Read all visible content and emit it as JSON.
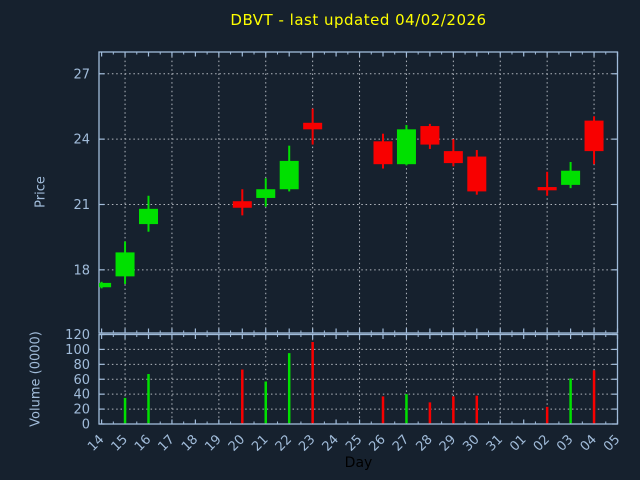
{
  "title": "DBVT - last updated 04/02/2026",
  "colors": {
    "background": "#16212e",
    "axis": "#a1bcda",
    "grid": "#c3c8cf",
    "title": "#ffff00",
    "up": "#00e000",
    "down": "#f80000",
    "xlabel_color": "#000000"
  },
  "chart_data": [
    {
      "type": "candlestick",
      "title": "DBVT - last updated 04/02/2026",
      "xlabel": "Day",
      "ylabel": "Price",
      "ylim": [
        15.1,
        28.0
      ],
      "yticks": [
        18,
        21,
        24,
        27
      ],
      "grid": true,
      "legend": "none",
      "categories": [
        "14",
        "15",
        "16",
        "17",
        "18",
        "19",
        "20",
        "21",
        "22",
        "23",
        "24",
        "25",
        "26",
        "27",
        "28",
        "29",
        "30",
        "31",
        "01",
        "02",
        "03",
        "04",
        "05"
      ],
      "candles": [
        {
          "day": "14",
          "open": 17.2,
          "high": 17.45,
          "low": 17.15,
          "close": 17.4
        },
        {
          "day": "15",
          "open": 17.7,
          "high": 19.3,
          "low": 17.35,
          "close": 18.8
        },
        {
          "day": "16",
          "open": 20.1,
          "high": 21.4,
          "low": 19.75,
          "close": 20.8
        },
        {
          "day": "20",
          "open": 21.15,
          "high": 21.7,
          "low": 20.5,
          "close": 20.85
        },
        {
          "day": "21",
          "open": 21.3,
          "high": 22.2,
          "low": 20.9,
          "close": 21.7
        },
        {
          "day": "22",
          "open": 21.7,
          "high": 23.7,
          "low": 21.6,
          "close": 23.0
        },
        {
          "day": "23",
          "open": 24.75,
          "high": 25.4,
          "low": 23.75,
          "close": 24.45
        },
        {
          "day": "26",
          "open": 23.9,
          "high": 24.25,
          "low": 22.65,
          "close": 22.85
        },
        {
          "day": "27",
          "open": 22.85,
          "high": 24.65,
          "low": 22.8,
          "close": 24.45
        },
        {
          "day": "28",
          "open": 24.6,
          "high": 24.7,
          "low": 23.55,
          "close": 23.75
        },
        {
          "day": "29",
          "open": 23.45,
          "high": 24.0,
          "low": 22.75,
          "close": 22.9
        },
        {
          "day": "30",
          "open": 23.2,
          "high": 23.5,
          "low": 21.45,
          "close": 21.6
        },
        {
          "day": "02",
          "open": 21.8,
          "high": 22.5,
          "low": 21.4,
          "close": 21.65
        },
        {
          "day": "03",
          "open": 21.9,
          "high": 22.95,
          "low": 21.75,
          "close": 22.55
        },
        {
          "day": "04",
          "open": 24.85,
          "high": 25.05,
          "low": 22.85,
          "close": 23.45
        }
      ]
    },
    {
      "type": "bar",
      "xlabel": "Day",
      "ylabel": "Volume (0000)",
      "ylim": [
        0,
        120
      ],
      "yticks": [
        0,
        20,
        40,
        60,
        80,
        100,
        120
      ],
      "grid": true,
      "categories": [
        "14",
        "15",
        "16",
        "17",
        "18",
        "19",
        "20",
        "21",
        "22",
        "23",
        "24",
        "25",
        "26",
        "27",
        "28",
        "29",
        "30",
        "31",
        "01",
        "02",
        "03",
        "04",
        "05"
      ],
      "bars": [
        {
          "day": "15",
          "value": 35,
          "direction": "up"
        },
        {
          "day": "16",
          "value": 67,
          "direction": "up"
        },
        {
          "day": "20",
          "value": 73,
          "direction": "down"
        },
        {
          "day": "21",
          "value": 57,
          "direction": "up"
        },
        {
          "day": "22",
          "value": 95,
          "direction": "up"
        },
        {
          "day": "23",
          "value": 110,
          "direction": "down"
        },
        {
          "day": "26",
          "value": 37,
          "direction": "down"
        },
        {
          "day": "27",
          "value": 40,
          "direction": "up"
        },
        {
          "day": "28",
          "value": 29,
          "direction": "down"
        },
        {
          "day": "29",
          "value": 37,
          "direction": "down"
        },
        {
          "day": "30",
          "value": 38,
          "direction": "down"
        },
        {
          "day": "02",
          "value": 23,
          "direction": "down"
        },
        {
          "day": "03",
          "value": 61,
          "direction": "up"
        },
        {
          "day": "04",
          "value": 72,
          "direction": "down"
        }
      ]
    }
  ]
}
